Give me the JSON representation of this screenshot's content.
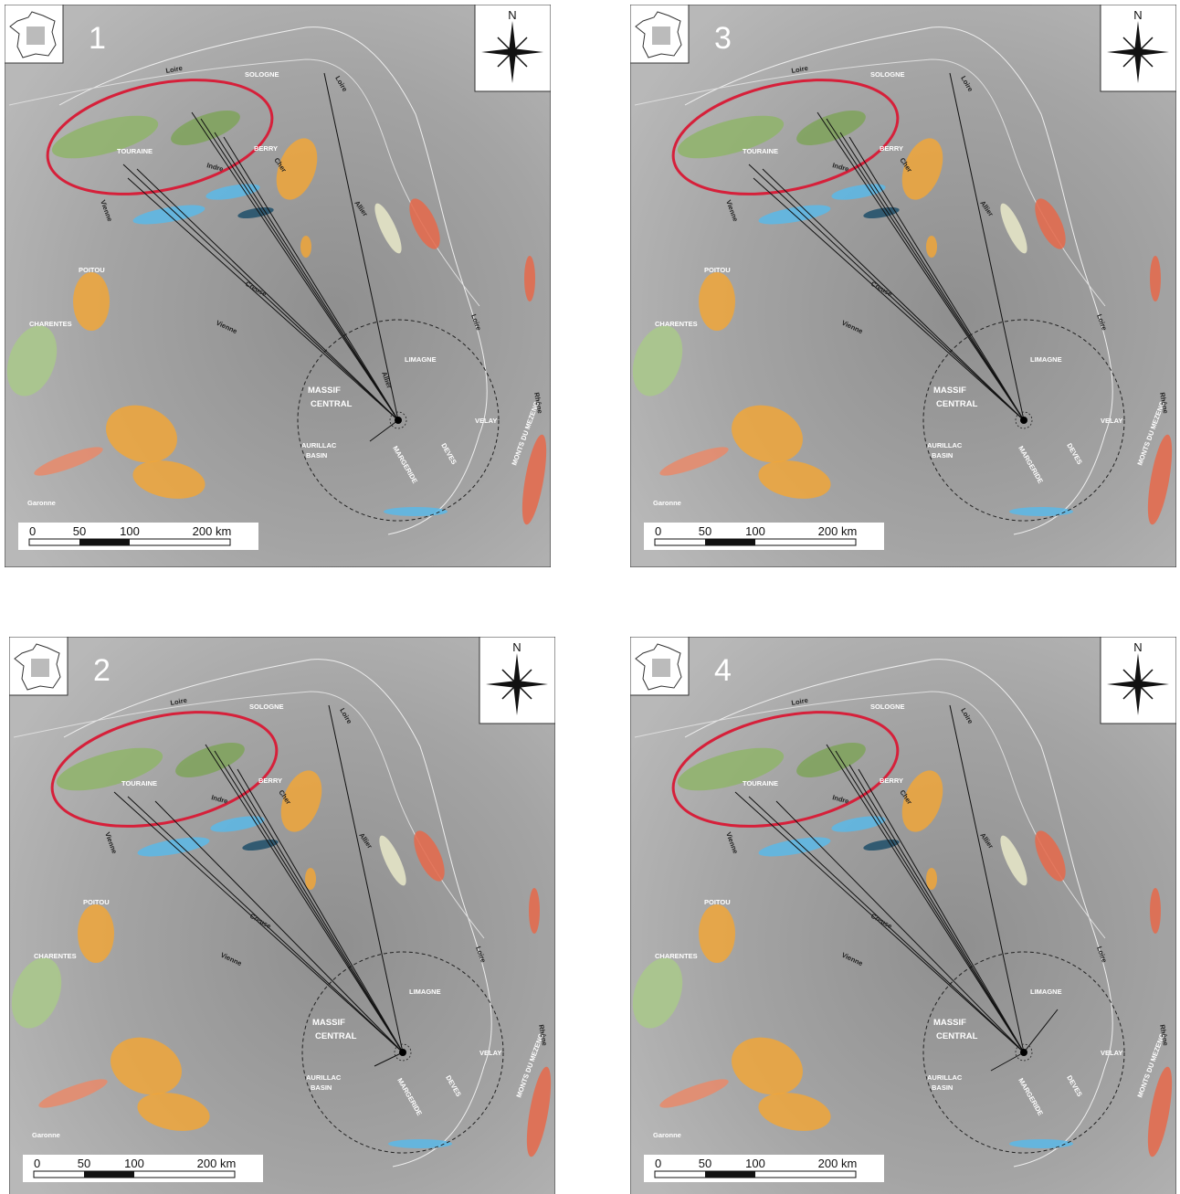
{
  "panels": [
    {
      "number": "1"
    },
    {
      "number": "3"
    },
    {
      "number": "2"
    },
    {
      "number": "4"
    }
  ],
  "north": "N",
  "labels": [
    "Loire",
    "SOLOGNE",
    "Loire",
    "TOURAINE",
    "BERRY",
    "Cher",
    "Indre",
    "Vienne",
    "Allier",
    "POITOU",
    "CHARENTES",
    "Creuse",
    "Vienne",
    "Loire",
    "LIMAGNE",
    "Allier",
    "MASSIF",
    "CENTRAL",
    "MARGERIDE",
    "DEVES",
    "VELAY",
    "Rhône",
    "MONTS DU MEZENC",
    "AURILLAC",
    "BASIN",
    "Garonne"
  ],
  "scale": [
    "0",
    "50",
    "100",
    "200 km"
  ]
}
